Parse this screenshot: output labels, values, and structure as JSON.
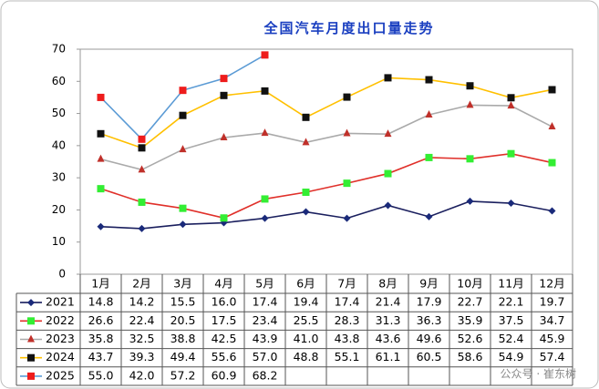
{
  "chart_data": {
    "type": "line",
    "title": "全国汽车月度出口量走势",
    "categories": [
      "1月",
      "2月",
      "3月",
      "4月",
      "5月",
      "6月",
      "7月",
      "8月",
      "9月",
      "10月",
      "11月",
      "12月"
    ],
    "ylim": [
      0,
      70
    ],
    "yticks": [
      0,
      10,
      20,
      30,
      40,
      50,
      60,
      70
    ],
    "series": [
      {
        "name": "2021",
        "color": "#1a1f5e",
        "marker": "diamond",
        "marker_color": "#1a2a7a",
        "values": [
          14.8,
          14.2,
          15.5,
          16.0,
          17.4,
          19.4,
          17.4,
          21.4,
          17.9,
          22.7,
          22.1,
          19.7
        ],
        "value_labels": [
          "14.8",
          "14.2",
          "15.5",
          "16.0",
          "17.4",
          "19.4",
          "17.4",
          "21.4",
          "17.9",
          "22.7",
          "22.1",
          "19.7"
        ]
      },
      {
        "name": "2022",
        "color": "#e0302a",
        "marker": "square",
        "marker_color": "#33ee33",
        "values": [
          26.6,
          22.4,
          20.5,
          17.5,
          23.4,
          25.5,
          28.3,
          31.3,
          36.3,
          35.9,
          37.5,
          34.7
        ],
        "value_labels": [
          "26.6",
          "22.4",
          "20.5",
          "17.5",
          "23.4",
          "25.5",
          "28.3",
          "31.3",
          "36.3",
          "35.9",
          "37.5",
          "34.7"
        ]
      },
      {
        "name": "2023",
        "color": "#aaaaaa",
        "marker": "triangle",
        "marker_color": "#c0302a",
        "values": [
          35.8,
          32.5,
          38.8,
          42.5,
          43.9,
          41.0,
          43.8,
          43.6,
          49.6,
          52.6,
          52.4,
          45.9
        ],
        "value_labels": [
          "35.8",
          "32.5",
          "38.8",
          "42.5",
          "43.9",
          "41.0",
          "43.8",
          "43.6",
          "49.6",
          "52.6",
          "52.4",
          "45.9"
        ]
      },
      {
        "name": "2024",
        "color": "#ffc000",
        "marker": "square",
        "marker_color": "#111111",
        "values": [
          43.7,
          39.3,
          49.4,
          55.6,
          57.0,
          48.8,
          55.1,
          61.1,
          60.5,
          58.6,
          54.9,
          57.4
        ],
        "value_labels": [
          "43.7",
          "39.3",
          "49.4",
          "55.6",
          "57.0",
          "48.8",
          "55.1",
          "61.1",
          "60.5",
          "58.6",
          "54.9",
          "57.4"
        ]
      },
      {
        "name": "2025",
        "color": "#5b9bd5",
        "marker": "square",
        "marker_color": "#ee1c1c",
        "values": [
          55.0,
          42.0,
          57.2,
          60.9,
          68.2,
          null,
          null,
          null,
          null,
          null,
          null,
          null
        ],
        "value_labels": [
          "55.0",
          "42.0",
          "57.2",
          "60.9",
          "68.2",
          null,
          null,
          null,
          null,
          null,
          null,
          null
        ]
      }
    ],
    "watermark": "公众号 · 崔东树"
  }
}
